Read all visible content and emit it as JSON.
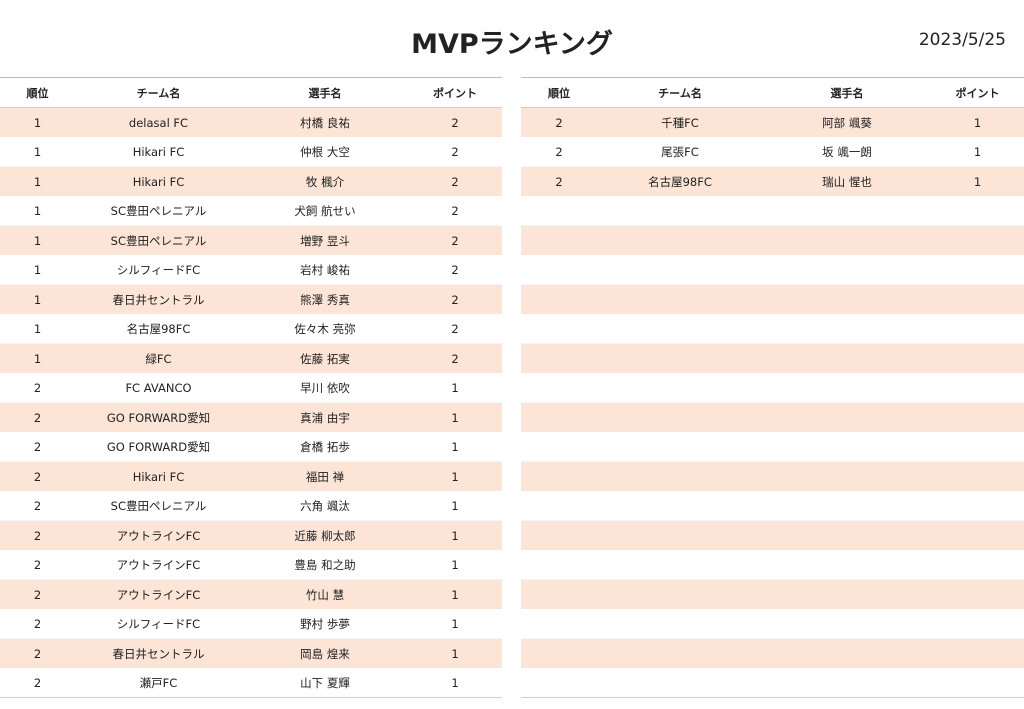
{
  "header": {
    "title": "MVPランキング",
    "date": "2023/5/25"
  },
  "tables": [
    {
      "headers": [
        "順位",
        "チーム名",
        "選手名",
        "ポイント"
      ],
      "rows": [
        [
          "1",
          "delasal FC",
          "村橋 良祐",
          "2"
        ],
        [
          "1",
          "Hikari FC",
          "仲根 大空",
          "2"
        ],
        [
          "1",
          "Hikari FC",
          "牧 楓介",
          "2"
        ],
        [
          "1",
          "SC豊田ペレニアル",
          "犬飼 航せい",
          "2"
        ],
        [
          "1",
          "SC豊田ペレニアル",
          "増野 昱斗",
          "2"
        ],
        [
          "1",
          "シルフィードFC",
          "岩村 峻祐",
          "2"
        ],
        [
          "1",
          "春日井セントラル",
          "熊澤 秀真",
          "2"
        ],
        [
          "1",
          "名古屋98FC",
          "佐々木 亮弥",
          "2"
        ],
        [
          "1",
          "緑FC",
          "佐藤 拓実",
          "2"
        ],
        [
          "2",
          "FC AVANCO",
          "早川 依吹",
          "1"
        ],
        [
          "2",
          "GO FORWARD愛知",
          "真浦 由宇",
          "1"
        ],
        [
          "2",
          "GO FORWARD愛知",
          "倉橋 拓歩",
          "1"
        ],
        [
          "2",
          "Hikari FC",
          "福田 禅",
          "1"
        ],
        [
          "2",
          "SC豊田ペレニアル",
          "六角 颯汰",
          "1"
        ],
        [
          "2",
          "アウトラインFC",
          "近藤 柳太郎",
          "1"
        ],
        [
          "2",
          "アウトラインFC",
          "豊島 和之助",
          "1"
        ],
        [
          "2",
          "アウトラインFC",
          "竹山 慧",
          "1"
        ],
        [
          "2",
          "シルフィードFC",
          "野村 歩夢",
          "1"
        ],
        [
          "2",
          "春日井セントラル",
          "岡島 煌来",
          "1"
        ],
        [
          "2",
          "瀬戸FC",
          "山下 夏輝",
          "1"
        ]
      ]
    },
    {
      "headers": [
        "順位",
        "チーム名",
        "選手名",
        "ポイント"
      ],
      "rows": [
        [
          "2",
          "千種FC",
          "阿部 颯葵",
          "1"
        ],
        [
          "2",
          "尾張FC",
          "坂 颯一朗",
          "1"
        ],
        [
          "2",
          "名古屋98FC",
          "瑞山 惺也",
          "1"
        ]
      ]
    }
  ]
}
